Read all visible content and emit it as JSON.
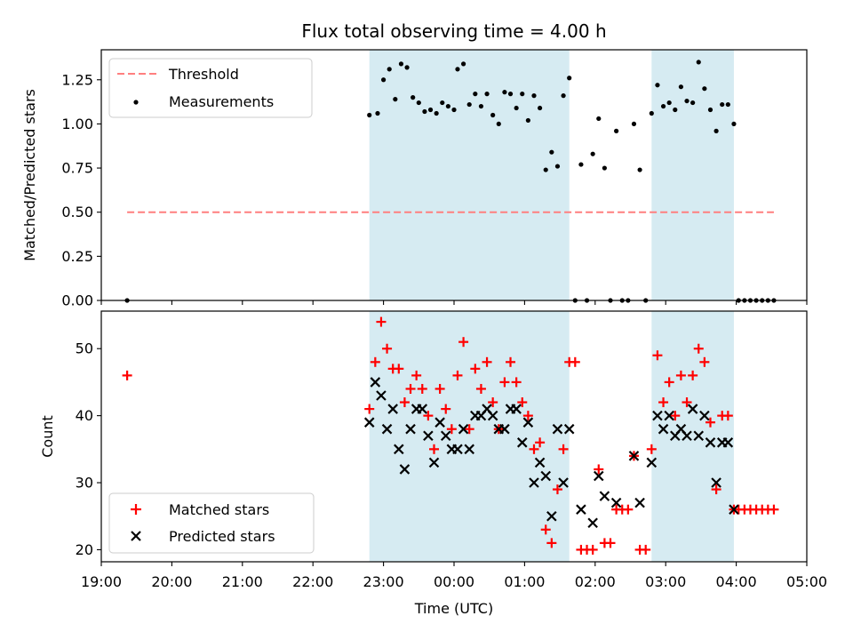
{
  "chart_data": [
    {
      "type": "scatter",
      "title": "Flux total observing time = 4.00 h",
      "ylabel": "Matched/Predicted stars",
      "xlabel": "",
      "xlim": [
        "19:00",
        "05:00"
      ],
      "ylim": [
        0.0,
        1.42
      ],
      "yticks": [
        "0.00",
        "0.25",
        "0.50",
        "0.75",
        "1.00",
        "1.25"
      ],
      "legend_position": "upper-left",
      "shaded_intervals": [
        [
          "22:48",
          "01:38"
        ],
        [
          "02:48",
          "03:58"
        ]
      ],
      "threshold": {
        "name": "Threshold",
        "y": 0.5,
        "x_range": [
          "19:22",
          "04:32"
        ],
        "color": "#ff7f7f"
      },
      "series": [
        {
          "name": "Measurements",
          "color": "#000000",
          "points": [
            [
              "19:22",
              0.0
            ],
            [
              "22:48",
              1.05
            ],
            [
              "22:55",
              1.06
            ],
            [
              "23:00",
              1.25
            ],
            [
              "23:05",
              1.31
            ],
            [
              "23:10",
              1.14
            ],
            [
              "23:15",
              1.34
            ],
            [
              "23:20",
              1.32
            ],
            [
              "23:25",
              1.15
            ],
            [
              "23:30",
              1.12
            ],
            [
              "23:35",
              1.07
            ],
            [
              "23:40",
              1.08
            ],
            [
              "23:45",
              1.06
            ],
            [
              "23:50",
              1.12
            ],
            [
              "23:55",
              1.1
            ],
            [
              "00:00",
              1.08
            ],
            [
              "00:03",
              1.31
            ],
            [
              "00:08",
              1.34
            ],
            [
              "00:13",
              1.11
            ],
            [
              "00:18",
              1.17
            ],
            [
              "00:23",
              1.1
            ],
            [
              "00:28",
              1.17
            ],
            [
              "00:33",
              1.05
            ],
            [
              "00:38",
              1.0
            ],
            [
              "00:43",
              1.18
            ],
            [
              "00:48",
              1.17
            ],
            [
              "00:53",
              1.09
            ],
            [
              "00:58",
              1.17
            ],
            [
              "01:03",
              1.02
            ],
            [
              "01:08",
              1.16
            ],
            [
              "01:13",
              1.09
            ],
            [
              "01:18",
              0.74
            ],
            [
              "01:23",
              0.84
            ],
            [
              "01:28",
              0.76
            ],
            [
              "01:33",
              1.16
            ],
            [
              "01:38",
              1.26
            ],
            [
              "01:43",
              0.0
            ],
            [
              "01:48",
              0.77
            ],
            [
              "01:53",
              0.0
            ],
            [
              "01:58",
              0.83
            ],
            [
              "02:03",
              1.03
            ],
            [
              "02:08",
              0.75
            ],
            [
              "02:13",
              0.0
            ],
            [
              "02:18",
              0.96
            ],
            [
              "02:23",
              0.0
            ],
            [
              "02:28",
              0.0
            ],
            [
              "02:33",
              1.0
            ],
            [
              "02:38",
              0.74
            ],
            [
              "02:43",
              0.0
            ],
            [
              "02:48",
              1.06
            ],
            [
              "02:53",
              1.22
            ],
            [
              "02:58",
              1.1
            ],
            [
              "03:03",
              1.12
            ],
            [
              "03:08",
              1.08
            ],
            [
              "03:13",
              1.21
            ],
            [
              "03:18",
              1.13
            ],
            [
              "03:23",
              1.12
            ],
            [
              "03:28",
              1.35
            ],
            [
              "03:33",
              1.2
            ],
            [
              "03:38",
              1.08
            ],
            [
              "03:43",
              0.96
            ],
            [
              "03:48",
              1.11
            ],
            [
              "03:53",
              1.11
            ],
            [
              "03:58",
              1.0
            ],
            [
              "04:02",
              0.0
            ],
            [
              "04:07",
              0.0
            ],
            [
              "04:12",
              0.0
            ],
            [
              "04:17",
              0.0
            ],
            [
              "04:22",
              0.0
            ],
            [
              "04:27",
              0.0
            ],
            [
              "04:32",
              0.0
            ]
          ]
        }
      ]
    },
    {
      "type": "scatter",
      "title": "",
      "ylabel": "Count",
      "xlabel": "Time (UTC)",
      "xlim": [
        "19:00",
        "05:00"
      ],
      "ylim": [
        18.2,
        55.6
      ],
      "yticks": [
        "20",
        "30",
        "40",
        "50"
      ],
      "xticks": [
        "19:00",
        "20:00",
        "21:00",
        "22:00",
        "23:00",
        "00:00",
        "01:00",
        "02:00",
        "03:00",
        "04:00",
        "05:00"
      ],
      "legend_position": "lower-left",
      "shaded_intervals": [
        [
          "22:48",
          "01:38"
        ],
        [
          "02:48",
          "03:58"
        ]
      ],
      "series": [
        {
          "name": "Matched stars",
          "marker": "plus",
          "color": "#ff0000",
          "points": [
            [
              "19:22",
              46
            ],
            [
              "22:48",
              41
            ],
            [
              "22:53",
              48
            ],
            [
              "22:58",
              54
            ],
            [
              "23:03",
              50
            ],
            [
              "23:08",
              47
            ],
            [
              "23:13",
              47
            ],
            [
              "23:18",
              42
            ],
            [
              "23:23",
              44
            ],
            [
              "23:28",
              46
            ],
            [
              "23:33",
              44
            ],
            [
              "23:38",
              40
            ],
            [
              "23:43",
              35
            ],
            [
              "23:48",
              44
            ],
            [
              "23:53",
              41
            ],
            [
              "23:58",
              38
            ],
            [
              "00:03",
              46
            ],
            [
              "00:08",
              51
            ],
            [
              "00:13",
              38
            ],
            [
              "00:18",
              47
            ],
            [
              "00:23",
              44
            ],
            [
              "00:28",
              48
            ],
            [
              "00:33",
              42
            ],
            [
              "00:38",
              38
            ],
            [
              "00:43",
              45
            ],
            [
              "00:48",
              48
            ],
            [
              "00:53",
              45
            ],
            [
              "00:58",
              42
            ],
            [
              "01:03",
              40
            ],
            [
              "01:08",
              35
            ],
            [
              "01:13",
              36
            ],
            [
              "01:18",
              23
            ],
            [
              "01:23",
              21
            ],
            [
              "01:28",
              29
            ],
            [
              "01:33",
              35
            ],
            [
              "01:38",
              48
            ],
            [
              "01:43",
              48
            ],
            [
              "01:48",
              20
            ],
            [
              "01:53",
              20
            ],
            [
              "01:58",
              20
            ],
            [
              "02:03",
              32
            ],
            [
              "02:08",
              21
            ],
            [
              "02:13",
              21
            ],
            [
              "02:18",
              26
            ],
            [
              "02:23",
              26
            ],
            [
              "02:28",
              26
            ],
            [
              "02:33",
              34
            ],
            [
              "02:38",
              20
            ],
            [
              "02:43",
              20
            ],
            [
              "02:48",
              35
            ],
            [
              "02:53",
              49
            ],
            [
              "02:58",
              42
            ],
            [
              "03:03",
              45
            ],
            [
              "03:08",
              40
            ],
            [
              "03:13",
              46
            ],
            [
              "03:18",
              42
            ],
            [
              "03:23",
              46
            ],
            [
              "03:28",
              50
            ],
            [
              "03:33",
              48
            ],
            [
              "03:38",
              39
            ],
            [
              "03:43",
              29
            ],
            [
              "03:48",
              40
            ],
            [
              "03:53",
              40
            ],
            [
              "03:58",
              26
            ],
            [
              "04:02",
              26
            ],
            [
              "04:07",
              26
            ],
            [
              "04:12",
              26
            ],
            [
              "04:17",
              26
            ],
            [
              "04:22",
              26
            ],
            [
              "04:27",
              26
            ],
            [
              "04:32",
              26
            ]
          ]
        },
        {
          "name": "Predicted stars",
          "marker": "x",
          "color": "#000000",
          "points": [
            [
              "22:48",
              39
            ],
            [
              "22:53",
              45
            ],
            [
              "22:58",
              43
            ],
            [
              "23:03",
              38
            ],
            [
              "23:08",
              41
            ],
            [
              "23:13",
              35
            ],
            [
              "23:18",
              32
            ],
            [
              "23:23",
              38
            ],
            [
              "23:28",
              41
            ],
            [
              "23:33",
              41
            ],
            [
              "23:38",
              37
            ],
            [
              "23:43",
              33
            ],
            [
              "23:48",
              39
            ],
            [
              "23:53",
              37
            ],
            [
              "23:58",
              35
            ],
            [
              "00:03",
              35
            ],
            [
              "00:08",
              38
            ],
            [
              "00:13",
              35
            ],
            [
              "00:18",
              40
            ],
            [
              "00:23",
              40
            ],
            [
              "00:28",
              41
            ],
            [
              "00:33",
              40
            ],
            [
              "00:38",
              38
            ],
            [
              "00:43",
              38
            ],
            [
              "00:48",
              41
            ],
            [
              "00:53",
              41
            ],
            [
              "00:58",
              36
            ],
            [
              "01:03",
              39
            ],
            [
              "01:08",
              30
            ],
            [
              "01:13",
              33
            ],
            [
              "01:18",
              31
            ],
            [
              "01:23",
              25
            ],
            [
              "01:28",
              38
            ],
            [
              "01:33",
              30
            ],
            [
              "01:38",
              38
            ],
            [
              "01:48",
              26
            ],
            [
              "01:58",
              24
            ],
            [
              "02:03",
              31
            ],
            [
              "02:08",
              28
            ],
            [
              "02:18",
              27
            ],
            [
              "02:33",
              34
            ],
            [
              "02:38",
              27
            ],
            [
              "02:48",
              33
            ],
            [
              "02:53",
              40
            ],
            [
              "02:58",
              38
            ],
            [
              "03:03",
              40
            ],
            [
              "03:08",
              37
            ],
            [
              "03:13",
              38
            ],
            [
              "03:18",
              37
            ],
            [
              "03:23",
              41
            ],
            [
              "03:28",
              37
            ],
            [
              "03:33",
              40
            ],
            [
              "03:38",
              36
            ],
            [
              "03:43",
              30
            ],
            [
              "03:48",
              36
            ],
            [
              "03:53",
              36
            ],
            [
              "03:58",
              26
            ]
          ]
        }
      ]
    }
  ]
}
